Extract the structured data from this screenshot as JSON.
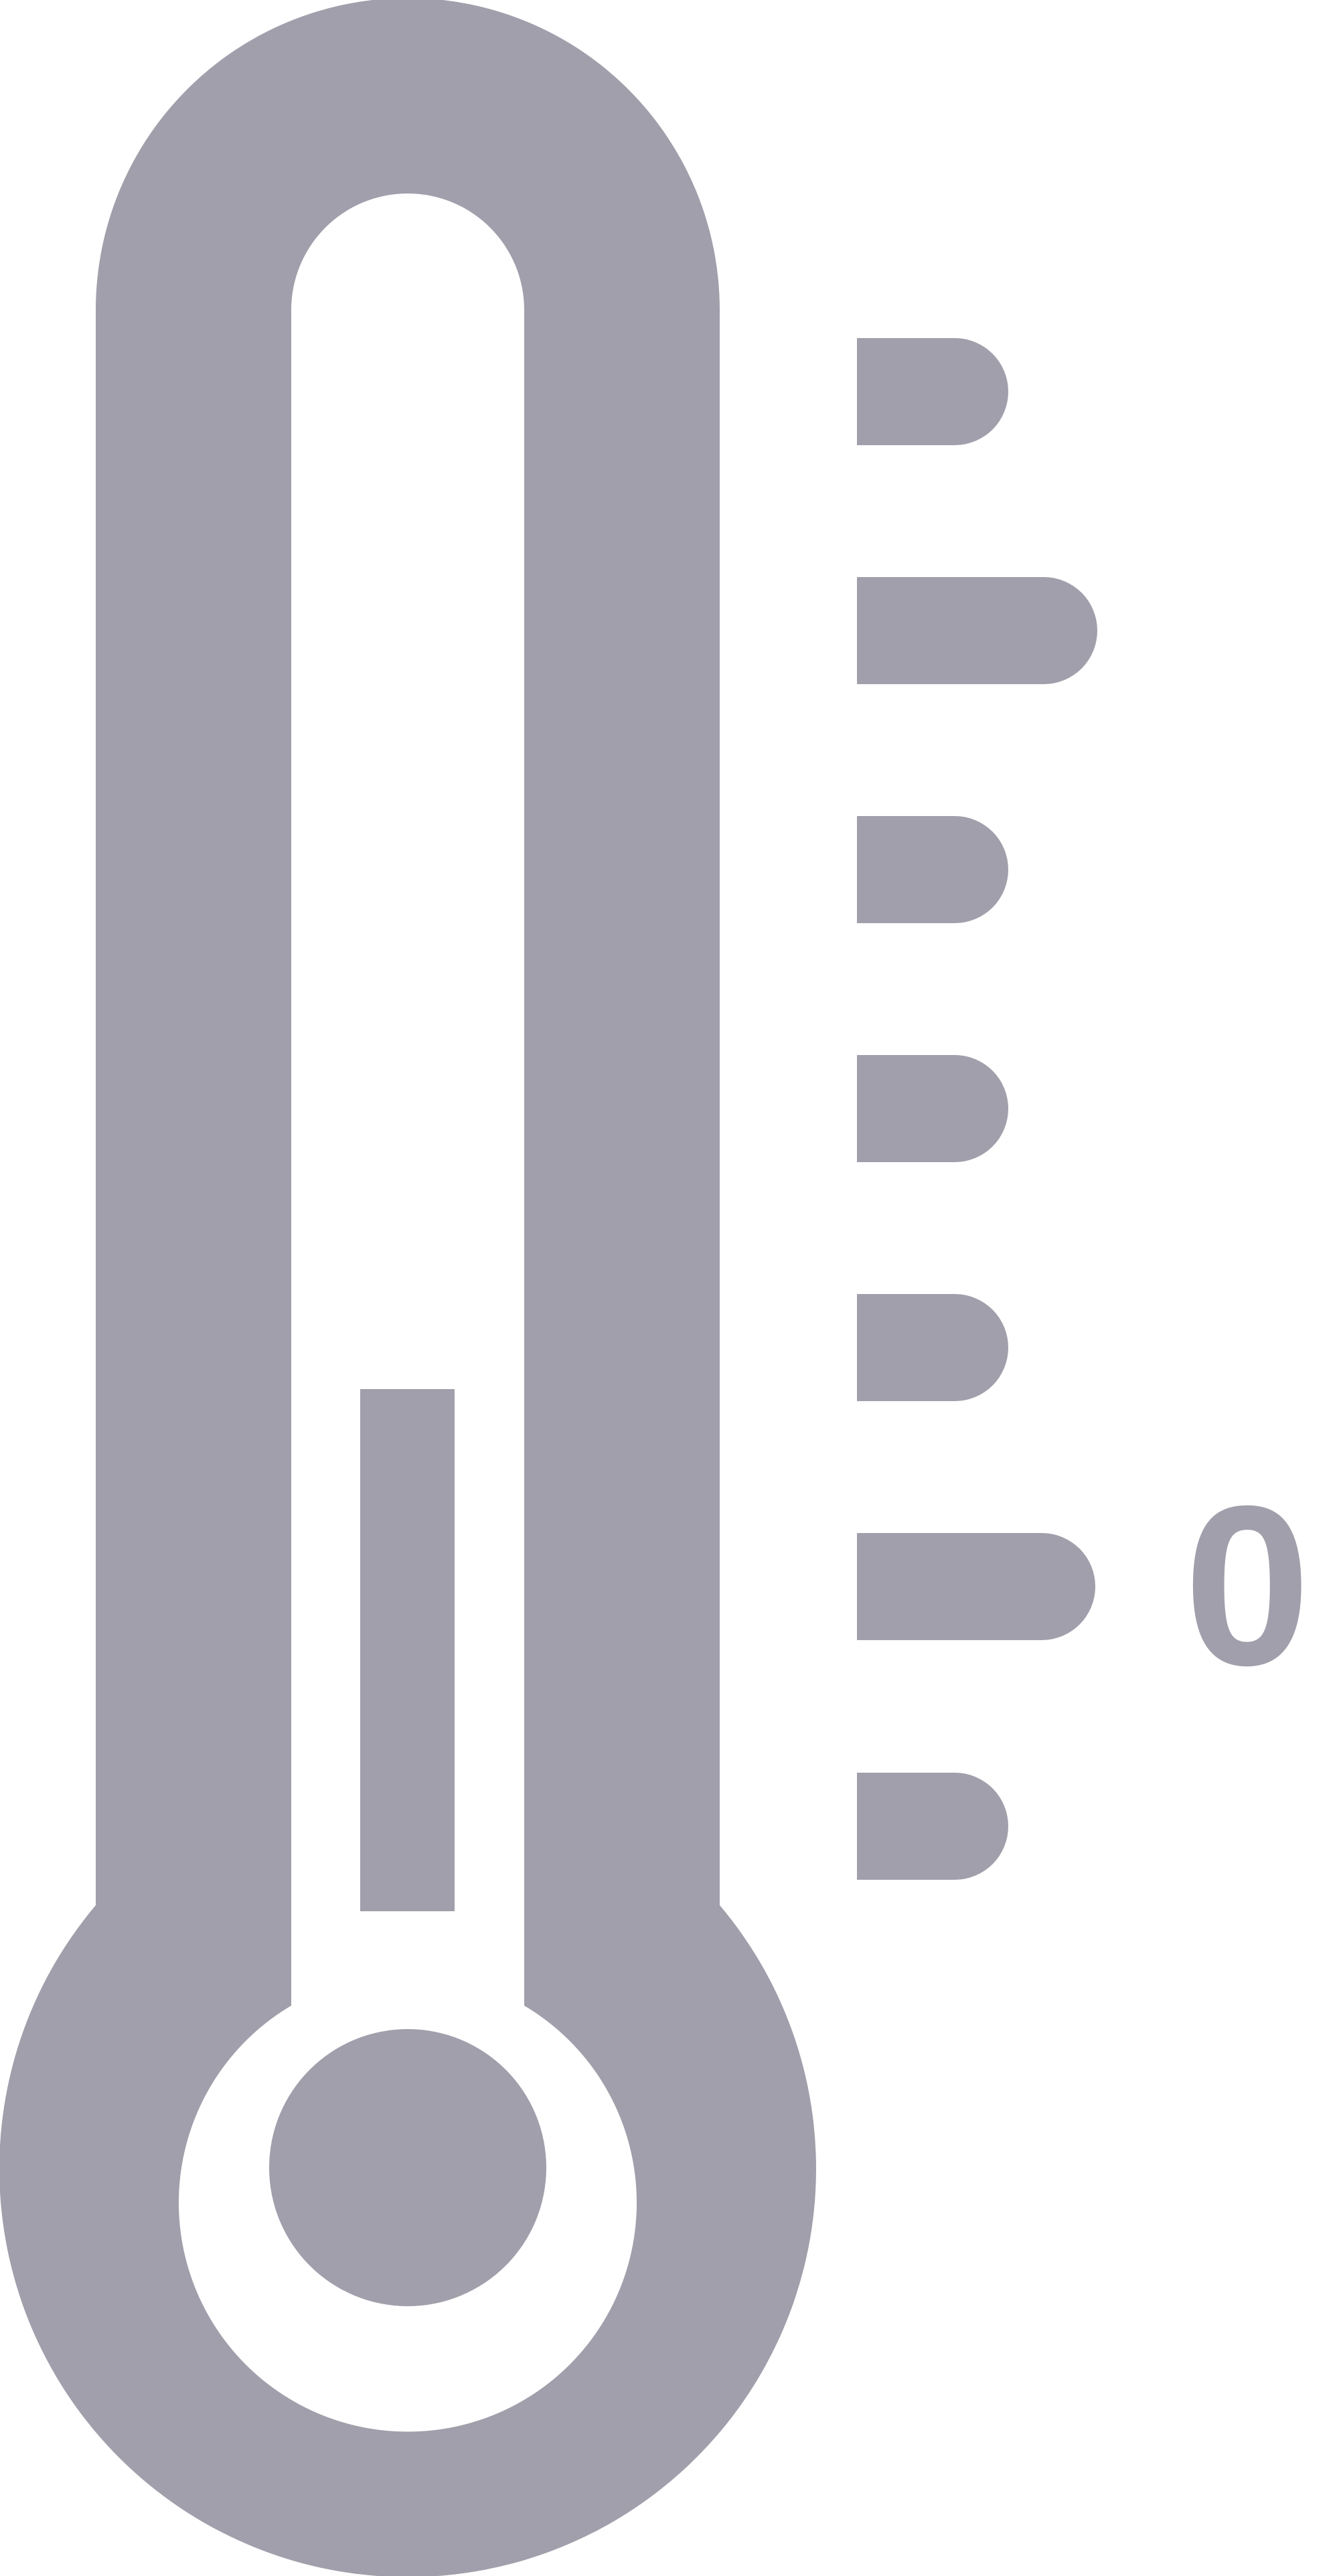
{
  "icon": {
    "name": "thermometer-icon",
    "color": "#a19fab",
    "background": "#ffffff"
  },
  "scale": {
    "label": "0",
    "ticks": [
      "short",
      "long",
      "short",
      "short",
      "short",
      "long",
      "short"
    ]
  }
}
